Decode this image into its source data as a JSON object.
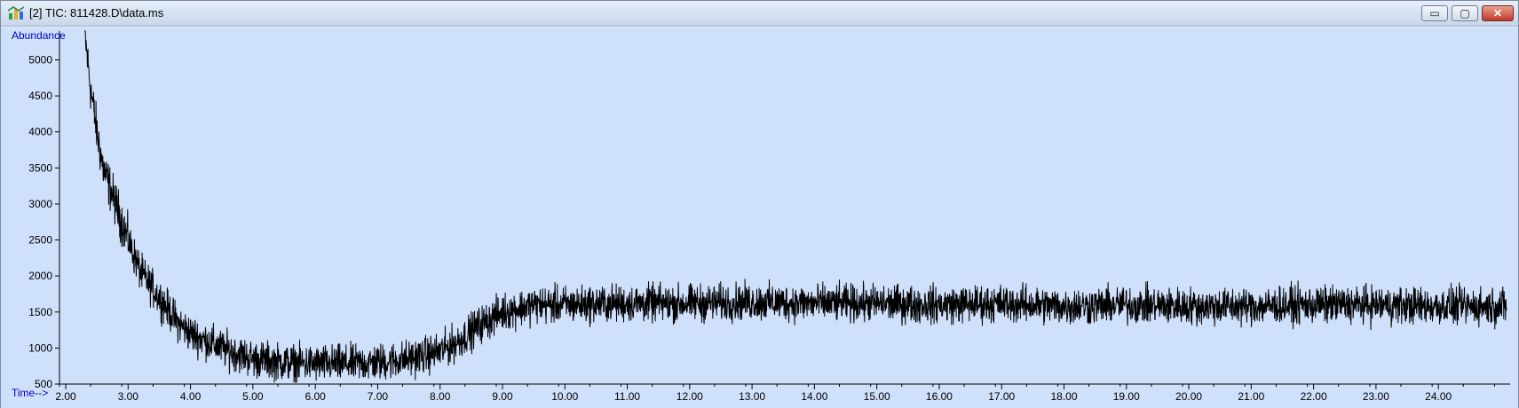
{
  "window": {
    "title": "[2] TIC: 811428.D\\data.ms",
    "buttons": {
      "minimize": "▭",
      "maximize": "▢",
      "close": "✕"
    },
    "colors": {
      "plot_background": "#cfe0fb",
      "trace": "#000000",
      "axis_label": "#0000c8"
    }
  },
  "chart_data": {
    "type": "line",
    "title": "",
    "ylabel": "Abundance",
    "xlabel": "Time-->",
    "xlim": [
      1.9,
      25.15
    ],
    "ylim": [
      500,
      5400
    ],
    "x_ticks": [
      2.0,
      3.0,
      4.0,
      5.0,
      6.0,
      7.0,
      8.0,
      9.0,
      10.0,
      11.0,
      12.0,
      13.0,
      14.0,
      15.0,
      16.0,
      17.0,
      18.0,
      19.0,
      20.0,
      21.0,
      22.0,
      23.0,
      24.0
    ],
    "x_tick_labels": [
      "2.00",
      "3.00",
      "4.00",
      "5.00",
      "6.00",
      "7.00",
      "8.00",
      "9.00",
      "10.00",
      "11.00",
      "12.00",
      "13.00",
      "14.00",
      "15.00",
      "16.00",
      "17.00",
      "18.00",
      "19.00",
      "20.00",
      "21.00",
      "22.00",
      "23.00",
      "24.00"
    ],
    "y_ticks": [
      500,
      1000,
      1500,
      2000,
      2500,
      3000,
      3500,
      4000,
      4500,
      5000
    ],
    "y_tick_labels": [
      "500",
      "1000",
      "1500",
      "2000",
      "2500",
      "3000",
      "3500",
      "4000",
      "4500",
      "5000"
    ],
    "series": [
      {
        "x": [
          2.3,
          2.4,
          2.5,
          2.6,
          2.8,
          3.0,
          3.2,
          3.5,
          3.8,
          4.0,
          4.5,
          5.0,
          5.5,
          6.0,
          6.5,
          7.0,
          7.5,
          8.0,
          8.3,
          8.6,
          9.0,
          9.5,
          10.0,
          11.0,
          12.0,
          13.0,
          14.0,
          15.0,
          16.0,
          17.0,
          18.0,
          19.0,
          20.0,
          21.0,
          22.0,
          23.0,
          24.0,
          25.1
        ],
        "y": [
          5400,
          4600,
          4000,
          3500,
          3000,
          2500,
          2050,
          1700,
          1350,
          1200,
          1000,
          850,
          800,
          780,
          780,
          800,
          850,
          950,
          1100,
          1300,
          1500,
          1600,
          1600,
          1620,
          1620,
          1640,
          1620,
          1620,
          1600,
          1620,
          1580,
          1600,
          1580,
          1580,
          1600,
          1600,
          1580,
          1580
        ]
      }
    ],
    "noise_amplitude": 230,
    "grid": false
  }
}
